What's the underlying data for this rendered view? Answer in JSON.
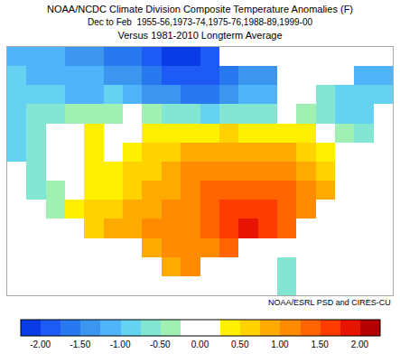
{
  "chart_data": {
    "type": "heatmap",
    "title": "NOAA/NCDC Climate Division Composite Temperature Anomalies (F)",
    "subtitle": [
      "Dec to Feb  1955-56,1973-74,1975-76,1988-89,1999-00",
      "Versus 1981-2010 Longterm Average"
    ],
    "annotations": [
      "NOAA/ESRL PSD and CIRES-CU"
    ],
    "tick_labels": false,
    "xlim": [
      -125.5,
      -65.5
    ],
    "ylim": [
      24,
      50
    ],
    "x": [
      -124,
      -121,
      -118,
      -115,
      -112,
      -109,
      -106,
      -103,
      -100,
      -97,
      -94,
      -91,
      -88,
      -85,
      -82,
      -79,
      -76,
      -73,
      -70,
      -67
    ],
    "y": [
      25,
      27,
      29,
      31,
      33,
      35,
      37,
      39,
      41,
      43,
      45,
      47,
      49
    ],
    "z": [
      [
        null,
        null,
        null,
        null,
        null,
        null,
        null,
        null,
        null,
        null,
        null,
        null,
        null,
        null,
        -0.6,
        null,
        null,
        null,
        null,
        null
      ],
      [
        null,
        null,
        null,
        null,
        null,
        null,
        null,
        null,
        0.9,
        1.1,
        null,
        null,
        null,
        null,
        -0.6,
        null,
        null,
        null,
        null,
        null
      ],
      [
        null,
        null,
        null,
        null,
        null,
        null,
        null,
        0.9,
        1.1,
        1.1,
        1.1,
        1.4,
        null,
        null,
        0.1,
        null,
        null,
        null,
        null,
        null
      ],
      [
        null,
        null,
        null,
        null,
        0.6,
        0.9,
        0.9,
        1.1,
        1.1,
        1.1,
        1.4,
        1.6,
        1.9,
        1.6,
        1.4,
        null,
        null,
        null,
        null,
        null
      ],
      [
        null,
        null,
        -0.4,
        0.4,
        0.6,
        0.6,
        0.9,
        0.9,
        1.1,
        1.1,
        1.4,
        1.6,
        1.6,
        1.6,
        1.4,
        1.1,
        null,
        null,
        null,
        null
      ],
      [
        null,
        -0.6,
        -0.4,
        0.1,
        0.4,
        0.4,
        0.6,
        0.9,
        0.9,
        1.1,
        1.4,
        1.4,
        1.4,
        1.4,
        1.4,
        1.1,
        0.9,
        null,
        null,
        null
      ],
      [
        null,
        -0.6,
        -0.1,
        0.1,
        0.4,
        0.4,
        0.6,
        0.6,
        0.9,
        1.1,
        1.1,
        1.1,
        1.1,
        1.1,
        1.1,
        0.9,
        0.6,
        null,
        null,
        null
      ],
      [
        -0.9,
        -0.6,
        0.1,
        0.1,
        0.4,
        0.1,
        0.4,
        0.6,
        0.6,
        0.9,
        0.9,
        0.9,
        0.9,
        0.9,
        0.9,
        0.6,
        0.4,
        null,
        null,
        null
      ],
      [
        -0.9,
        -0.6,
        -0.1,
        0.1,
        0.4,
        0.1,
        0.1,
        0.4,
        0.4,
        0.4,
        0.4,
        0.6,
        0.4,
        0.4,
        0.4,
        0.4,
        0.1,
        -0.4,
        -0.6,
        null
      ],
      [
        -0.9,
        -0.6,
        -0.6,
        -0.4,
        -0.4,
        -0.4,
        -0.1,
        -0.4,
        -0.6,
        -0.6,
        -0.9,
        -0.6,
        -0.6,
        -0.6,
        null,
        -0.4,
        -0.6,
        -0.9,
        -0.9,
        null
      ],
      [
        -0.9,
        -0.9,
        -0.9,
        -1.1,
        -1.1,
        -0.9,
        -1.1,
        -1.4,
        -1.4,
        -1.6,
        -1.6,
        -1.4,
        -1.1,
        -1.1,
        null,
        null,
        -0.6,
        -0.9,
        -0.9,
        -0.9
      ],
      [
        -0.9,
        -1.1,
        -1.1,
        -1.1,
        -1.1,
        -1.4,
        -1.4,
        -1.6,
        -1.9,
        -1.9,
        -1.9,
        -1.6,
        -1.4,
        -1.4,
        null,
        null,
        null,
        null,
        -1.1,
        -1.1
      ],
      [
        -1.1,
        -1.1,
        -1.1,
        -1.4,
        -1.4,
        -1.6,
        -1.6,
        -1.9,
        -2.1,
        -2.1,
        -1.9,
        null,
        null,
        null,
        null,
        null,
        null,
        null,
        null,
        null
      ]
    ],
    "colorbar": {
      "range": [
        -2.25,
        2.25
      ],
      "ticks": [
        {
          "value": -2,
          "label": "-2.00"
        },
        {
          "value": -1.5,
          "label": "-1.50"
        },
        {
          "value": -1,
          "label": "-1.00"
        },
        {
          "value": -0.5,
          "label": "-0.50"
        },
        {
          "value": 0,
          "label": "0.00"
        },
        {
          "value": 0.5,
          "label": "0.50"
        },
        {
          "value": 1,
          "label": "1.00"
        },
        {
          "value": 1.5,
          "label": "1.50"
        },
        {
          "value": 2,
          "label": "2.00"
        }
      ]
    }
  }
}
